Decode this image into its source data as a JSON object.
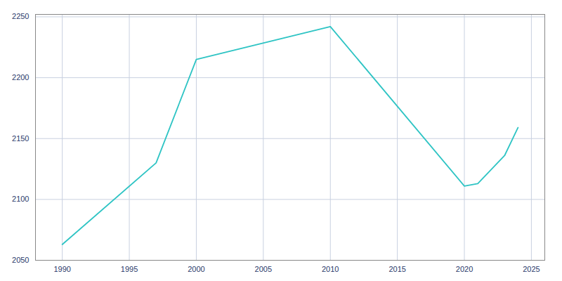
{
  "chart_data": {
    "type": "line",
    "x": [
      1990,
      1997,
      2000,
      2010,
      2020,
      2021,
      2023,
      2024
    ],
    "values": [
      2063,
      2130,
      2215,
      2242,
      2111,
      2113,
      2136,
      2159
    ],
    "color": "#2ec4c4",
    "xlim": [
      1988,
      2026
    ],
    "ylim": [
      2050,
      2252
    ],
    "xticks": [
      1990,
      1995,
      2000,
      2005,
      2010,
      2015,
      2020,
      2025
    ],
    "yticks": [
      2050,
      2100,
      2150,
      2200,
      2250
    ],
    "grid": true
  }
}
